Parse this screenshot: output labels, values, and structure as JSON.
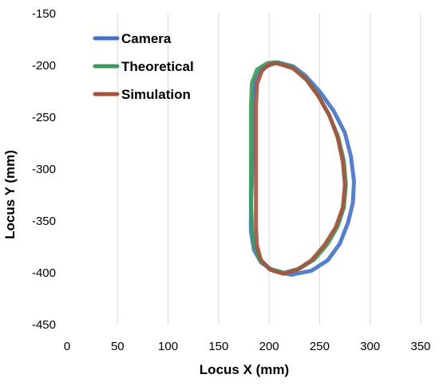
{
  "chart_data": {
    "type": "line",
    "xlabel": "Locus X (mm)",
    "ylabel": "Locus Y (mm)",
    "xlim": [
      0,
      350
    ],
    "ylim": [
      -450,
      -150
    ],
    "x_ticks": [
      0,
      50,
      100,
      150,
      200,
      250,
      300,
      350
    ],
    "y_ticks": [
      -150,
      -200,
      -250,
      -300,
      -350,
      -400,
      -450
    ],
    "grid": "vertical",
    "legend_position": "top-left",
    "series": [
      {
        "name": "Camera",
        "color": "#4472C4",
        "points": [
          [
            208,
            -197
          ],
          [
            224,
            -201
          ],
          [
            236,
            -210
          ],
          [
            250,
            -225
          ],
          [
            264,
            -244
          ],
          [
            275,
            -265
          ],
          [
            281,
            -288
          ],
          [
            284,
            -312
          ],
          [
            283,
            -332
          ],
          [
            278,
            -352
          ],
          [
            270,
            -372
          ],
          [
            258,
            -388
          ],
          [
            242,
            -398
          ],
          [
            222,
            -402
          ],
          [
            204,
            -398
          ],
          [
            192,
            -390
          ],
          [
            185,
            -378
          ],
          [
            182,
            -360
          ],
          [
            182,
            -335
          ],
          [
            183,
            -310
          ],
          [
            184,
            -285
          ],
          [
            184,
            -260
          ],
          [
            184,
            -235
          ],
          [
            186,
            -214
          ],
          [
            194,
            -202
          ],
          [
            208,
            -197
          ]
        ]
      },
      {
        "name": "Theoretical",
        "color": "#3D9A5C",
        "points": [
          [
            205,
            -197
          ],
          [
            222,
            -201
          ],
          [
            236,
            -212
          ],
          [
            248,
            -228
          ],
          [
            259,
            -247
          ],
          [
            268,
            -268
          ],
          [
            274,
            -292
          ],
          [
            276,
            -315
          ],
          [
            274,
            -337
          ],
          [
            268,
            -355
          ],
          [
            258,
            -372
          ],
          [
            245,
            -387
          ],
          [
            230,
            -396
          ],
          [
            215,
            -400
          ],
          [
            200,
            -396
          ],
          [
            190,
            -386
          ],
          [
            185,
            -372
          ],
          [
            183,
            -355
          ],
          [
            182,
            -330
          ],
          [
            182,
            -300
          ],
          [
            182,
            -270
          ],
          [
            182,
            -240
          ],
          [
            183,
            -217
          ],
          [
            188,
            -204
          ],
          [
            198,
            -198
          ],
          [
            205,
            -197
          ]
        ]
      },
      {
        "name": "Simulation",
        "color": "#A5533F",
        "points": [
          [
            208,
            -198
          ],
          [
            224,
            -203
          ],
          [
            237,
            -214
          ],
          [
            249,
            -230
          ],
          [
            260,
            -249
          ],
          [
            268,
            -270
          ],
          [
            273,
            -293
          ],
          [
            275,
            -315
          ],
          [
            273,
            -337
          ],
          [
            266,
            -356
          ],
          [
            255,
            -373
          ],
          [
            242,
            -388
          ],
          [
            228,
            -397
          ],
          [
            214,
            -401
          ],
          [
            201,
            -397
          ],
          [
            192,
            -388
          ],
          [
            188,
            -374
          ],
          [
            187,
            -356
          ],
          [
            187,
            -330
          ],
          [
            187,
            -300
          ],
          [
            187,
            -270
          ],
          [
            187,
            -240
          ],
          [
            188,
            -218
          ],
          [
            193,
            -205
          ],
          [
            200,
            -199
          ],
          [
            208,
            -198
          ]
        ]
      }
    ]
  }
}
